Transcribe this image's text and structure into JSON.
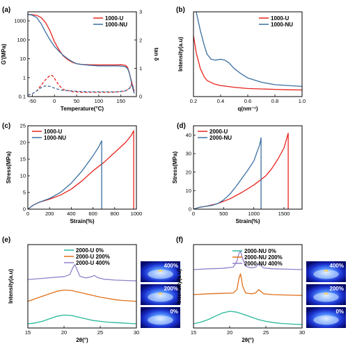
{
  "chart_data": [
    {
      "id": "a",
      "panel_label": "(a)",
      "type": "line",
      "xlabel": "Temperature(°C)",
      "ylabel": "G'(MPa)",
      "y2label": "tan δ",
      "xlim": [
        -60,
        185
      ],
      "ylim": [
        0.1,
        3000
      ],
      "yscale": "log",
      "y2lim": [
        0,
        3
      ],
      "xticks": [
        -50,
        0,
        50,
        100,
        150
      ],
      "yticks": [
        0.1,
        1,
        10,
        100,
        1000
      ],
      "ytick_labels": [
        "0.1",
        "1",
        "10",
        "100",
        "1000"
      ],
      "y2ticks": [
        0,
        1,
        2,
        3
      ],
      "legend": "top-right",
      "series": [
        {
          "name": "1000-U",
          "color": "#e8221c",
          "axis": "left",
          "style": "solid",
          "x": [
            -60,
            -50,
            -40,
            -30,
            -20,
            -10,
            0,
            10,
            20,
            30,
            40,
            50,
            60,
            80,
            100,
            120,
            140,
            150,
            160,
            165,
            170,
            175,
            180
          ],
          "y": [
            2200,
            2100,
            1950,
            1500,
            800,
            300,
            80,
            30,
            14,
            9,
            6.5,
            5.5,
            5,
            4.8,
            4.7,
            4.7,
            4.7,
            4.8,
            4.5,
            3.5,
            1.5,
            0.5,
            0.15
          ]
        },
        {
          "name": "1000-NU",
          "color": "#3a6fa0",
          "axis": "left",
          "style": "solid",
          "x": [
            -60,
            -50,
            -40,
            -30,
            -20,
            -10,
            0,
            10,
            20,
            30,
            40,
            50,
            60,
            80,
            100,
            120,
            140,
            150,
            160,
            165,
            170,
            175,
            180
          ],
          "y": [
            2200,
            2000,
            1500,
            700,
            250,
            100,
            45,
            25,
            15,
            10,
            7,
            5.5,
            5,
            4.5,
            4.2,
            4.2,
            4.2,
            4.1,
            3.8,
            3,
            1.5,
            0.4,
            0.15
          ]
        },
        {
          "name": "1000-U",
          "color": "#e8221c",
          "axis": "right",
          "style": "dashed",
          "x": [
            -60,
            -50,
            -40,
            -30,
            -20,
            -10,
            -5,
            0,
            10,
            20,
            40,
            60,
            80,
            100,
            120,
            140,
            160,
            170,
            175,
            180
          ],
          "y": [
            0.05,
            0.1,
            0.2,
            0.4,
            0.6,
            0.75,
            0.75,
            0.65,
            0.4,
            0.25,
            0.18,
            0.15,
            0.15,
            0.15,
            0.15,
            0.16,
            0.2,
            0.3,
            0.5,
            0.2
          ]
        },
        {
          "name": "1000-NU",
          "color": "#3a6fa0",
          "axis": "right",
          "style": "dashed",
          "x": [
            -60,
            -50,
            -40,
            -30,
            -20,
            -10,
            0,
            10,
            20,
            40,
            60,
            80,
            100,
            120,
            140,
            160,
            170,
            175,
            180
          ],
          "y": [
            0.05,
            0.1,
            0.2,
            0.32,
            0.38,
            0.36,
            0.3,
            0.25,
            0.22,
            0.2,
            0.18,
            0.17,
            0.17,
            0.17,
            0.17,
            0.2,
            0.3,
            0.45,
            0.2
          ]
        }
      ]
    },
    {
      "id": "b",
      "panel_label": "(b)",
      "type": "line",
      "xlabel": "q(nm⁻¹)",
      "ylabel": "Intensity(a.u)",
      "xlim": [
        0.2,
        1.0
      ],
      "ylim": [
        0,
        1
      ],
      "xticks": [
        0.2,
        0.4,
        0.6,
        0.8,
        1.0
      ],
      "xtick_labels": [
        "0.2",
        "0.4",
        "0.6",
        "0.8",
        "1.0"
      ],
      "legend": "top-right",
      "series": [
        {
          "name": "1000-U",
          "color": "#e8221c",
          "x": [
            0.2,
            0.22,
            0.25,
            0.28,
            0.3,
            0.35,
            0.4,
            0.5,
            0.6,
            0.7,
            0.8,
            0.9,
            1.0
          ],
          "y": [
            0.72,
            0.52,
            0.33,
            0.23,
            0.19,
            0.15,
            0.13,
            0.11,
            0.095,
            0.09,
            0.085,
            0.08,
            0.078
          ]
        },
        {
          "name": "1000-NU",
          "color": "#3a6fa0",
          "x": [
            0.22,
            0.25,
            0.28,
            0.3,
            0.33,
            0.36,
            0.4,
            0.43,
            0.46,
            0.5,
            0.55,
            0.6,
            0.7,
            0.8,
            0.9,
            1.0
          ],
          "y": [
            1.0,
            0.78,
            0.6,
            0.5,
            0.44,
            0.43,
            0.44,
            0.43,
            0.4,
            0.33,
            0.27,
            0.22,
            0.17,
            0.14,
            0.13,
            0.12
          ]
        }
      ]
    },
    {
      "id": "c",
      "panel_label": "(c)",
      "type": "line",
      "xlabel": "Strain(%)",
      "ylabel": "Stress(MPa)",
      "xlim": [
        0,
        1000
      ],
      "ylim": [
        0,
        25
      ],
      "xticks": [
        0,
        200,
        400,
        600,
        800,
        1000
      ],
      "yticks": [
        0,
        5,
        10,
        15,
        20,
        25
      ],
      "legend": "top-left",
      "series": [
        {
          "name": "1000-U",
          "color": "#e8221c",
          "x": [
            0,
            50,
            100,
            200,
            300,
            400,
            500,
            600,
            700,
            800,
            900,
            950,
            975,
            975
          ],
          "y": [
            0,
            1.2,
            2,
            3,
            4.2,
            6,
            8.5,
            11.5,
            14,
            17,
            20,
            22,
            23.5,
            0
          ]
        },
        {
          "name": "1000-NU",
          "color": "#3a6fa0",
          "x": [
            0,
            50,
            100,
            200,
            300,
            400,
            500,
            600,
            650,
            680,
            680
          ],
          "y": [
            0,
            1.2,
            2,
            3.2,
            5,
            7.8,
            11.5,
            16,
            18.5,
            20.5,
            0
          ]
        }
      ]
    },
    {
      "id": "d",
      "panel_label": "(d)",
      "type": "line",
      "xlabel": "Strain(%)",
      "ylabel": "Stress(MPa)",
      "xlim": [
        0,
        1800
      ],
      "ylim": [
        0,
        45
      ],
      "xticks": [
        0,
        500,
        1000,
        1500
      ],
      "yticks": [
        0,
        10,
        20,
        30,
        40
      ],
      "legend": "top-left",
      "series": [
        {
          "name": "2000-U",
          "color": "#e8221c",
          "x": [
            0,
            100,
            200,
            400,
            600,
            800,
            1000,
            1100,
            1200,
            1300,
            1400,
            1500,
            1570,
            1570
          ],
          "y": [
            0,
            1,
            1.5,
            3,
            5.5,
            9,
            13,
            15.5,
            18,
            22,
            27,
            33,
            41,
            0
          ]
        },
        {
          "name": "2000-NU",
          "color": "#3a6fa0",
          "x": [
            0,
            100,
            200,
            300,
            400,
            500,
            600,
            700,
            800,
            900,
            1000,
            1100,
            1120,
            1120
          ],
          "y": [
            0,
            1,
            1.5,
            2,
            3,
            5,
            8,
            12,
            16.5,
            21,
            26,
            35,
            38.5,
            0
          ]
        }
      ]
    },
    {
      "id": "e",
      "panel_label": "(e)",
      "type": "line",
      "xlabel": "2θ(°)",
      "ylabel": "Intensity(a.u)",
      "xlim": [
        15,
        30
      ],
      "ylim": [
        0,
        1
      ],
      "xticks": [
        15,
        20,
        25,
        30
      ],
      "legend": "top-center",
      "series": [
        {
          "name": "2000-U 0%",
          "color": "#26b89a",
          "x": [
            15,
            16,
            17,
            18,
            19,
            20,
            21,
            22,
            23,
            24,
            25,
            26,
            27,
            28,
            29,
            30
          ],
          "y": [
            0.05,
            0.06,
            0.08,
            0.11,
            0.14,
            0.155,
            0.15,
            0.13,
            0.11,
            0.09,
            0.08,
            0.07,
            0.065,
            0.06,
            0.055,
            0.05
          ]
        },
        {
          "name": "2000-U 200%",
          "color": "#e0701a",
          "x": [
            15,
            16,
            17,
            18,
            19,
            20,
            21,
            22,
            23,
            24,
            25,
            26,
            27,
            28,
            29,
            30
          ],
          "y": [
            0.32,
            0.35,
            0.38,
            0.41,
            0.44,
            0.455,
            0.45,
            0.43,
            0.41,
            0.39,
            0.37,
            0.355,
            0.34,
            0.33,
            0.325,
            0.32
          ]
        },
        {
          "name": "2000-U 400%",
          "color": "#9181c9",
          "x": [
            15,
            17,
            19,
            20,
            20.8,
            21.2,
            21.5,
            21.8,
            22.2,
            23,
            23.8,
            24.2,
            24.6,
            25.5,
            27,
            28.5,
            30
          ],
          "y": [
            0.58,
            0.595,
            0.61,
            0.615,
            0.64,
            0.72,
            0.76,
            0.7,
            0.62,
            0.6,
            0.615,
            0.63,
            0.605,
            0.585,
            0.575,
            0.57,
            0.565
          ]
        }
      ],
      "inset_images": [
        "400%",
        "200%",
        "0%"
      ]
    },
    {
      "id": "f",
      "panel_label": "(f)",
      "type": "line",
      "xlabel": "2θ(°)",
      "ylabel": "Intensity(a.u)",
      "xlim": [
        15,
        30
      ],
      "ylim": [
        0,
        1
      ],
      "xticks": [
        15,
        20,
        25,
        30
      ],
      "legend": "top-right",
      "series": [
        {
          "name": "2000-NU 0%",
          "color": "#26b89a",
          "x": [
            15,
            16,
            17,
            18,
            19,
            20,
            21,
            22,
            23,
            24,
            25,
            26,
            27,
            28,
            29,
            30
          ],
          "y": [
            0.05,
            0.07,
            0.1,
            0.14,
            0.18,
            0.2,
            0.19,
            0.16,
            0.13,
            0.1,
            0.08,
            0.065,
            0.055,
            0.05,
            0.045,
            0.04
          ]
        },
        {
          "name": "2000-NU 200%",
          "color": "#e0701a",
          "x": [
            15,
            17,
            19,
            20.5,
            21,
            21.3,
            21.5,
            21.8,
            22.2,
            23,
            23.6,
            24,
            24.3,
            24.7,
            26,
            28,
            30
          ],
          "y": [
            0.4,
            0.41,
            0.415,
            0.42,
            0.46,
            0.6,
            0.65,
            0.5,
            0.42,
            0.41,
            0.42,
            0.46,
            0.44,
            0.41,
            0.4,
            0.395,
            0.39
          ]
        },
        {
          "name": "2000-NU 400%",
          "color": "#9181c9",
          "x": [
            15,
            17,
            19,
            20.5,
            21,
            21.3,
            21.5,
            21.8,
            22.2,
            23,
            23.6,
            24,
            24.3,
            24.7,
            26,
            28,
            30
          ],
          "y": [
            0.7,
            0.71,
            0.715,
            0.73,
            0.8,
            0.9,
            0.92,
            0.83,
            0.74,
            0.72,
            0.73,
            0.77,
            0.75,
            0.72,
            0.71,
            0.705,
            0.7
          ]
        }
      ],
      "inset_images": [
        "400%",
        "200%",
        "0%"
      ]
    }
  ]
}
